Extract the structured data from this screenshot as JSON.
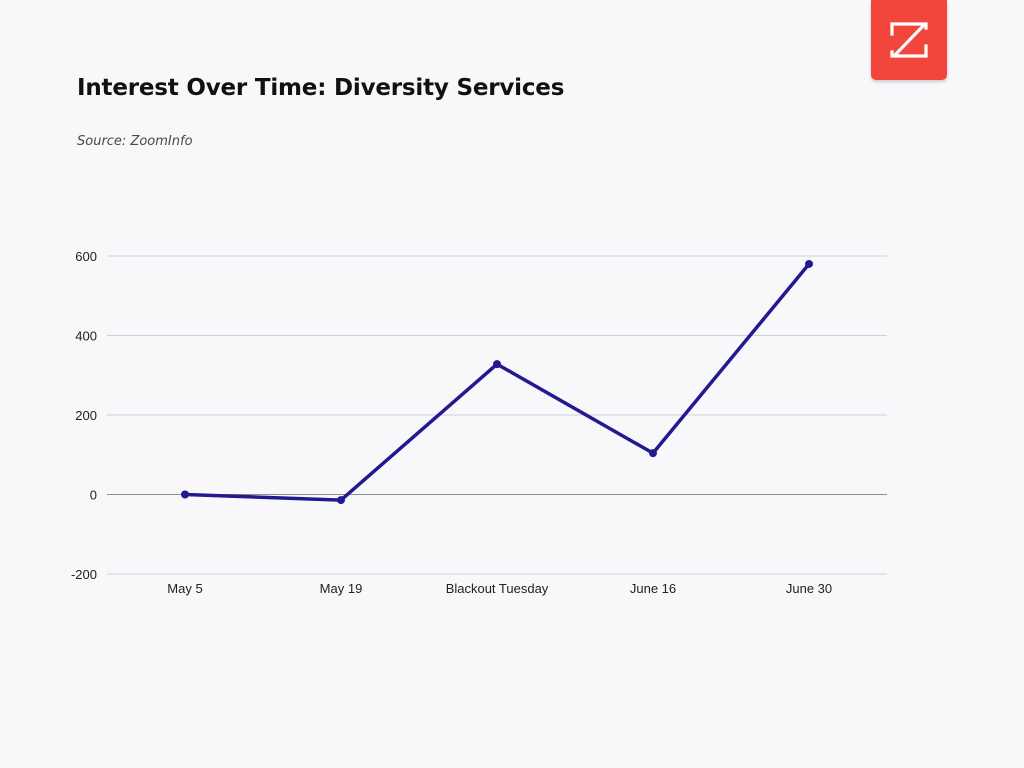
{
  "header": {
    "title": "Interest Over Time: Diversity Services",
    "source": "Source: ZoomInfo"
  },
  "logo": {
    "icon": "zoominfo-z-logo-icon",
    "background": "#f2463d"
  },
  "chart_data": {
    "type": "line",
    "title": "Interest Over Time: Diversity Services",
    "xlabel": "",
    "ylabel": "",
    "categories": [
      "May 5",
      "May 19",
      "Blackout Tuesday",
      "June 16",
      "June 30"
    ],
    "series": [
      {
        "values": [
          0,
          -14,
          328,
          104,
          580
        ],
        "color": "#231a8f"
      }
    ],
    "ylim": [
      -200,
      600
    ],
    "yticks": [
      -200,
      0,
      200,
      400,
      600
    ],
    "ytick_labels": [
      "-200",
      "0",
      "200",
      "400",
      "600"
    ],
    "grid": true,
    "legend": "none"
  }
}
